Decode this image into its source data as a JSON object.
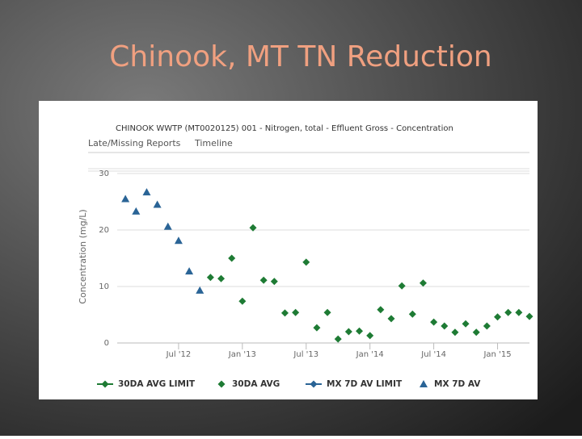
{
  "slide_title": "Chinook, MT TN Reduction",
  "chart_data": {
    "type": "scatter",
    "title": "CHINOOK WWTP (MT0020125) 001 - Nitrogen, total - Effluent Gross - Concentration",
    "tabs": [
      "Late/Missing Reports",
      "Timeline"
    ],
    "y_label": "Concentration (mg/L)",
    "xlim": [
      "2012-01",
      "2015-04"
    ],
    "xticks": [
      {
        "value": "2012-07",
        "label": "Jul '12"
      },
      {
        "value": "2013-01",
        "label": "Jan '13"
      },
      {
        "value": "2013-07",
        "label": "Jul '13"
      },
      {
        "value": "2014-01",
        "label": "Jan '14"
      },
      {
        "value": "2014-07",
        "label": "Jul '14"
      },
      {
        "value": "2015-01",
        "label": "Jan '15"
      }
    ],
    "ylim": [
      0,
      30
    ],
    "yticks": [
      0,
      10,
      20,
      30
    ],
    "grid": true,
    "series": [
      {
        "name": "30DA AVG LIMIT",
        "color": "#1e7b34",
        "marker": "diamond",
        "legend_line": true,
        "x": [],
        "values": []
      },
      {
        "name": "30DA AVG",
        "color": "#1e7b34",
        "marker": "diamond",
        "legend_line": false,
        "x": [
          "2012-10",
          "2012-11",
          "2012-12",
          "2013-01",
          "2013-02",
          "2013-03",
          "2013-04",
          "2013-05",
          "2013-06",
          "2013-07",
          "2013-08",
          "2013-09",
          "2013-10",
          "2013-11",
          "2013-12",
          "2014-01",
          "2014-02",
          "2014-03",
          "2014-04",
          "2014-05",
          "2014-06",
          "2014-07",
          "2014-08",
          "2014-09",
          "2014-10",
          "2014-11",
          "2014-12",
          "2015-01",
          "2015-02",
          "2015-03",
          "2015-04"
        ],
        "values": [
          11.6,
          11.4,
          15,
          7.4,
          20.4,
          11.1,
          10.9,
          5.3,
          5.4,
          14.3,
          2.7,
          5.4,
          0.7,
          2.0,
          2.1,
          1.3,
          5.9,
          4.3,
          10.1,
          5.1,
          10.6,
          3.7,
          3.0,
          1.9,
          3.4,
          1.9,
          3.0,
          4.6,
          5.4,
          5.4,
          4.7
        ]
      },
      {
        "name": "MX 7D AV LIMIT",
        "color": "#2a6496",
        "marker": "diamond",
        "legend_line": true,
        "x": [],
        "values": []
      },
      {
        "name": "MX 7D AV",
        "color": "#2a6496",
        "marker": "triangle",
        "legend_line": false,
        "x": [
          "2012-02",
          "2012-03",
          "2012-04",
          "2012-05",
          "2012-06",
          "2012-07",
          "2012-08",
          "2012-09"
        ],
        "values": [
          25.5,
          23.3,
          26.7,
          24.5,
          20.6,
          18.1,
          12.7,
          9.3
        ]
      }
    ]
  }
}
